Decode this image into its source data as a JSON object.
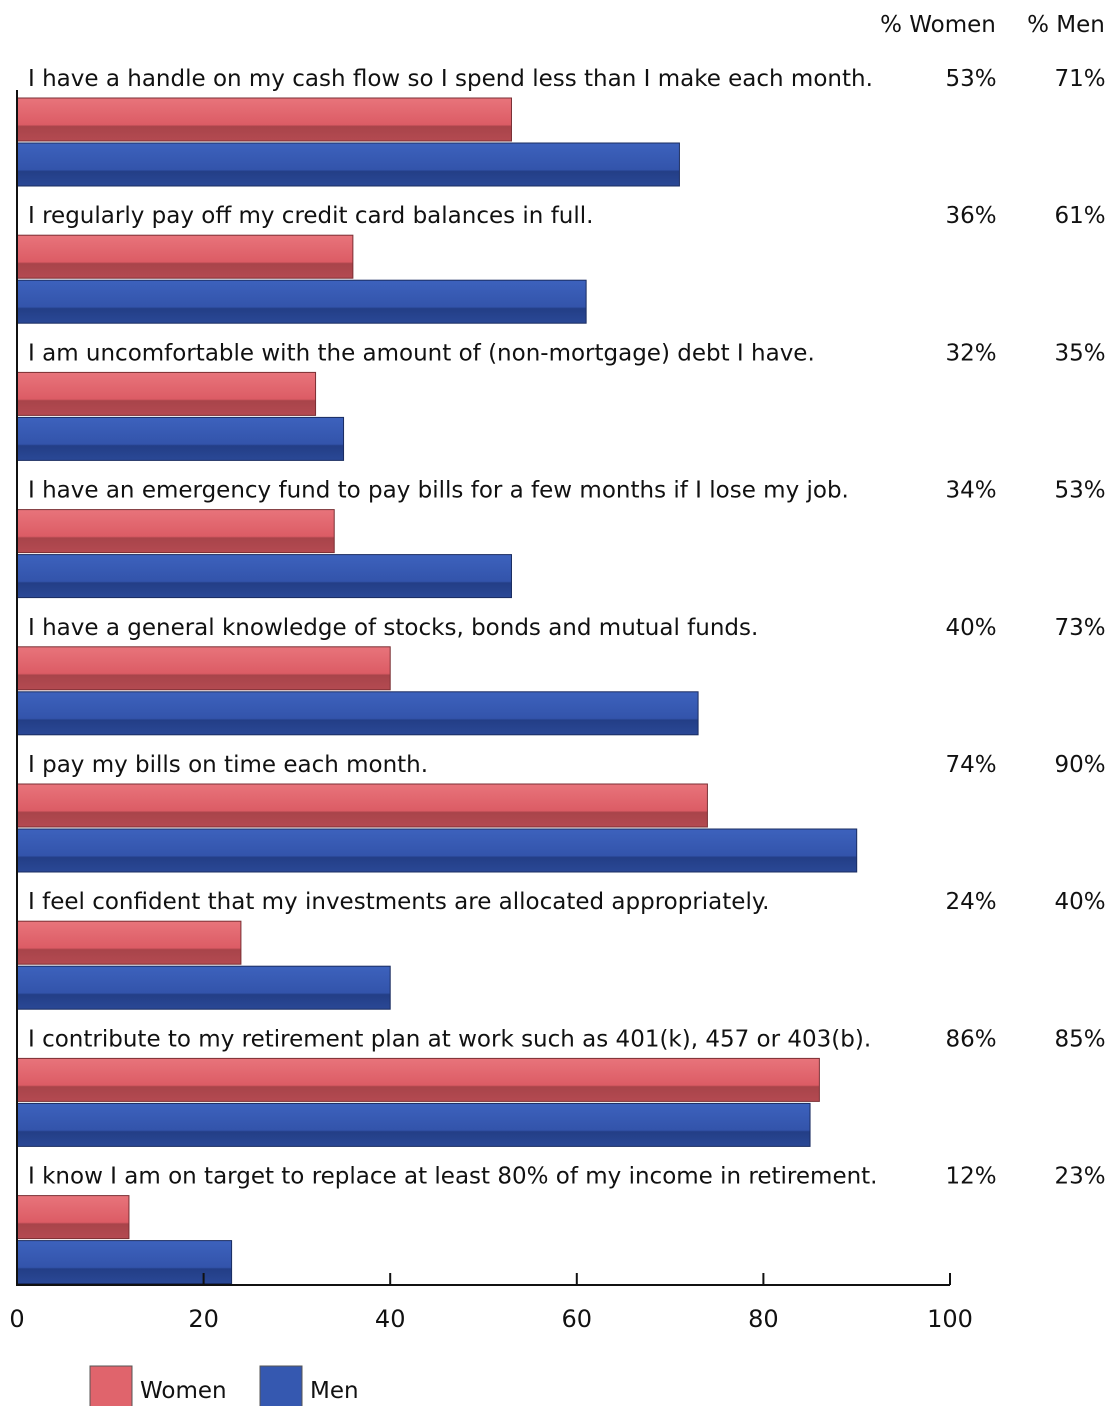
{
  "chart_data": {
    "type": "bar",
    "orientation": "horizontal",
    "column_headers": [
      "% Women",
      "% Men"
    ],
    "categories": [
      "I have a handle on my cash flow so I spend less than I make each month.",
      "I regularly pay off my credit card balances in full.",
      "I am uncomfortable with the amount of (non-mortgage) debt I have.",
      "I have an emergency fund to pay bills for a few months if I lose my job.",
      "I have a general knowledge of stocks, bonds and mutual funds.",
      "I pay my bills on time each month.",
      "I feel confident that my investments are allocated appropriately.",
      "I contribute to my retirement plan at work such as 401(k), 457 or 403(b).",
      "I know I am on target to replace at least 80% of my income in retirement."
    ],
    "series": [
      {
        "name": "Women",
        "color": "#e0646c",
        "values": [
          53,
          36,
          32,
          34,
          40,
          74,
          24,
          86,
          12
        ],
        "labels": [
          "53%",
          "36%",
          "32%",
          "34%",
          "40%",
          "74%",
          "24%",
          "86%",
          "12%"
        ]
      },
      {
        "name": "Men",
        "color": "#3558b0",
        "values": [
          71,
          61,
          35,
          53,
          73,
          90,
          40,
          85,
          23
        ],
        "labels": [
          "71%",
          "61%",
          "35%",
          "53%",
          "73%",
          "90%",
          "40%",
          "85%",
          "23%"
        ]
      }
    ],
    "xlim": [
      0,
      100
    ],
    "xticks": [
      "0",
      "20",
      "40",
      "60",
      "80",
      "100"
    ],
    "legend": {
      "placement": "bottom-left",
      "entries": [
        "Women",
        "Men"
      ]
    },
    "grid": false
  }
}
